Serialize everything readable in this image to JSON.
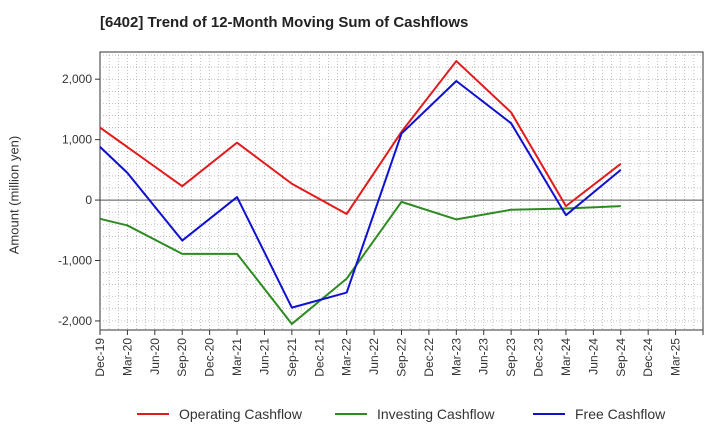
{
  "chart_data": {
    "type": "line",
    "title": "[6402]  Trend of 12-Month Moving Sum of Cashflows",
    "ylabel": "Amount (million yen)",
    "xlabel": "",
    "categories": [
      "Dec-19",
      "Mar-20",
      "Jun-20",
      "Sep-20",
      "Dec-20",
      "Mar-21",
      "Jun-21",
      "Sep-21",
      "Dec-21",
      "Mar-22",
      "Jun-22",
      "Sep-22",
      "Dec-22",
      "Mar-23",
      "Jun-23",
      "Sep-23",
      "Dec-23",
      "Mar-24",
      "Jun-24",
      "Sep-24",
      "Dec-24",
      "Mar-25"
    ],
    "yticks": [
      -2000,
      -1000,
      0,
      1000,
      2000
    ],
    "ytick_labels": [
      "-2,000",
      "-1,000",
      "0",
      "1,000",
      "2,000"
    ],
    "ylim": [
      -2150,
      2450
    ],
    "grid": true,
    "legend_position": "bottom",
    "series": [
      {
        "name": "Operating Cashflow",
        "color": "#e31a1c",
        "values": [
          1200,
          null,
          null,
          230,
          null,
          950,
          null,
          270,
          null,
          -230,
          null,
          1130,
          null,
          2300,
          null,
          1450,
          null,
          -100,
          null,
          600,
          null,
          null
        ]
      },
      {
        "name": "Investing Cashflow",
        "color": "#2e8b22",
        "values": [
          -310,
          -420,
          null,
          -890,
          null,
          -890,
          null,
          -2050,
          null,
          -1300,
          null,
          -30,
          null,
          -320,
          null,
          -160,
          null,
          -140,
          null,
          -100,
          null,
          null
        ]
      },
      {
        "name": "Free Cashflow",
        "color": "#1010d0",
        "values": [
          880,
          450,
          null,
          -670,
          null,
          50,
          null,
          -1780,
          null,
          -1530,
          null,
          1100,
          null,
          1970,
          null,
          1270,
          null,
          -250,
          null,
          500,
          null,
          null
        ]
      }
    ]
  }
}
